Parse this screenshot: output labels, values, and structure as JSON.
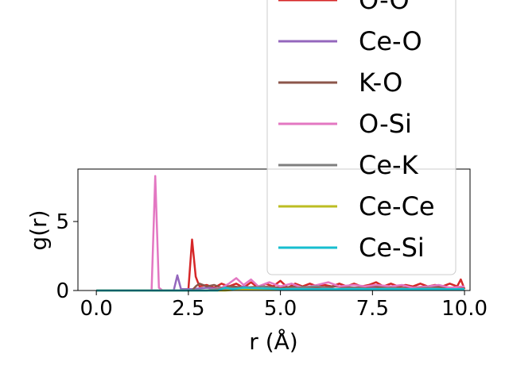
{
  "chart_data": {
    "type": "line",
    "xlabel": "r (Å)",
    "ylabel": "g(r)",
    "xlim": [
      -0.5,
      10.15
    ],
    "ylim": [
      0,
      8.8
    ],
    "xticks": [
      0.0,
      2.5,
      5.0,
      7.5,
      10.0
    ],
    "xtick_labels": [
      "0.0",
      "2.5",
      "5.0",
      "7.5",
      "10.0"
    ],
    "yticks": [
      0,
      5
    ],
    "ytick_labels": [
      "0",
      "5"
    ],
    "grid": false,
    "legend_placement": "top-right",
    "series": [
      {
        "name": "O-O",
        "color": "#d62728",
        "points": [
          [
            0,
            0
          ],
          [
            2.4,
            0
          ],
          [
            2.5,
            0.1
          ],
          [
            2.6,
            3.7
          ],
          [
            2.7,
            1.0
          ],
          [
            2.8,
            0.3
          ],
          [
            3.0,
            0.4
          ],
          [
            3.2,
            0.2
          ],
          [
            3.4,
            0.5
          ],
          [
            3.6,
            0.3
          ],
          [
            3.8,
            0.5
          ],
          [
            4.0,
            0.2
          ],
          [
            4.2,
            0.6
          ],
          [
            4.4,
            0.2
          ],
          [
            4.6,
            0.5
          ],
          [
            4.8,
            0.3
          ],
          [
            5.0,
            0.7
          ],
          [
            5.2,
            0.2
          ],
          [
            5.4,
            0.5
          ],
          [
            5.6,
            0.3
          ],
          [
            5.8,
            0.5
          ],
          [
            6.0,
            0.3
          ],
          [
            6.2,
            0.4
          ],
          [
            6.4,
            0.3
          ],
          [
            6.6,
            0.5
          ],
          [
            6.8,
            0.3
          ],
          [
            7.0,
            0.5
          ],
          [
            7.2,
            0.3
          ],
          [
            7.4,
            0.4
          ],
          [
            7.6,
            0.6
          ],
          [
            7.8,
            0.3
          ],
          [
            8.0,
            0.5
          ],
          [
            8.2,
            0.3
          ],
          [
            8.4,
            0.4
          ],
          [
            8.6,
            0.3
          ],
          [
            8.8,
            0.5
          ],
          [
            9.0,
            0.3
          ],
          [
            9.2,
            0.4
          ],
          [
            9.4,
            0.3
          ],
          [
            9.6,
            0.5
          ],
          [
            9.8,
            0.3
          ],
          [
            9.9,
            0.8
          ],
          [
            10.0,
            0.1
          ]
        ]
      },
      {
        "name": "Ce-O",
        "color": "#9467bd",
        "points": [
          [
            0,
            0
          ],
          [
            2.1,
            0
          ],
          [
            2.2,
            1.1
          ],
          [
            2.3,
            0.1
          ],
          [
            2.6,
            0.1
          ],
          [
            3.0,
            0.2
          ],
          [
            3.5,
            0.1
          ],
          [
            4.0,
            0.3
          ],
          [
            4.5,
            0.1
          ],
          [
            5.0,
            0.2
          ],
          [
            5.5,
            0.2
          ],
          [
            6.0,
            0.1
          ],
          [
            6.5,
            0.3
          ],
          [
            7.0,
            0.2
          ],
          [
            7.5,
            0.2
          ],
          [
            8.0,
            0.1
          ],
          [
            8.5,
            0.2
          ],
          [
            9.0,
            0.2
          ],
          [
            9.5,
            0.1
          ],
          [
            10.0,
            0.1
          ]
        ]
      },
      {
        "name": "K-O",
        "color": "#8c564b",
        "points": [
          [
            0,
            0
          ],
          [
            2.6,
            0
          ],
          [
            2.7,
            0.3
          ],
          [
            2.8,
            0.5
          ],
          [
            3.0,
            0.3
          ],
          [
            3.2,
            0.4
          ],
          [
            3.4,
            0.2
          ],
          [
            3.7,
            0.3
          ],
          [
            4.0,
            0.2
          ],
          [
            4.5,
            0.3
          ],
          [
            5.0,
            0.2
          ],
          [
            5.5,
            0.3
          ],
          [
            6.0,
            0.2
          ],
          [
            6.5,
            0.3
          ],
          [
            7.0,
            0.2
          ],
          [
            7.5,
            0.3
          ],
          [
            8.0,
            0.2
          ],
          [
            8.5,
            0.2
          ],
          [
            9.0,
            0.3
          ],
          [
            9.5,
            0.2
          ],
          [
            10.0,
            0.2
          ]
        ]
      },
      {
        "name": "O-Si",
        "color": "#e377c2",
        "points": [
          [
            0,
            0
          ],
          [
            1.5,
            0
          ],
          [
            1.6,
            8.3
          ],
          [
            1.7,
            0.2
          ],
          [
            1.8,
            0
          ],
          [
            3.0,
            0
          ],
          [
            3.4,
            0.2
          ],
          [
            3.6,
            0.5
          ],
          [
            3.8,
            0.9
          ],
          [
            4.0,
            0.4
          ],
          [
            4.2,
            0.8
          ],
          [
            4.4,
            0.3
          ],
          [
            4.7,
            0.6
          ],
          [
            5.0,
            0.3
          ],
          [
            5.3,
            0.5
          ],
          [
            5.6,
            0.2
          ],
          [
            6.0,
            0.4
          ],
          [
            6.3,
            0.6
          ],
          [
            6.6,
            0.3
          ],
          [
            7.0,
            0.4
          ],
          [
            7.3,
            0.3
          ],
          [
            7.6,
            0.4
          ],
          [
            8.0,
            0.3
          ],
          [
            8.3,
            0.4
          ],
          [
            8.6,
            0.2
          ],
          [
            9.0,
            0.3
          ],
          [
            9.3,
            0.4
          ],
          [
            9.6,
            0.2
          ],
          [
            10.0,
            0.3
          ]
        ]
      },
      {
        "name": "Ce-K",
        "color": "#7f7f7f",
        "points": [
          [
            0,
            0
          ],
          [
            3.0,
            0
          ],
          [
            3.5,
            0.2
          ],
          [
            4.0,
            0.1
          ],
          [
            4.5,
            0.3
          ],
          [
            5.0,
            0.1
          ],
          [
            5.5,
            0.2
          ],
          [
            6.0,
            0.3
          ],
          [
            6.5,
            0.1
          ],
          [
            7.0,
            0.2
          ],
          [
            7.5,
            0.1
          ],
          [
            8.0,
            0.2
          ],
          [
            8.5,
            0.1
          ],
          [
            9.0,
            0.2
          ],
          [
            9.5,
            0.1
          ],
          [
            10.0,
            0.1
          ]
        ]
      },
      {
        "name": "Ce-Ce",
        "color": "#bcbd22",
        "points": [
          [
            0,
            0
          ],
          [
            3.5,
            0
          ],
          [
            4.0,
            0.1
          ],
          [
            5.0,
            0.1
          ],
          [
            6.0,
            0.1
          ],
          [
            7.0,
            0.1
          ],
          [
            8.0,
            0.1
          ],
          [
            9.0,
            0.1
          ],
          [
            10.0,
            0.1
          ]
        ]
      },
      {
        "name": "Ce-Si",
        "color": "#17becf",
        "points": [
          [
            0,
            0
          ],
          [
            3.3,
            0
          ],
          [
            3.5,
            0.2
          ],
          [
            3.7,
            0.1
          ],
          [
            4.0,
            0.2
          ],
          [
            5.0,
            0.1
          ],
          [
            6.0,
            0.1
          ],
          [
            7.0,
            0.1
          ],
          [
            8.0,
            0.1
          ],
          [
            9.0,
            0.1
          ],
          [
            10.0,
            0.1
          ]
        ]
      }
    ]
  }
}
